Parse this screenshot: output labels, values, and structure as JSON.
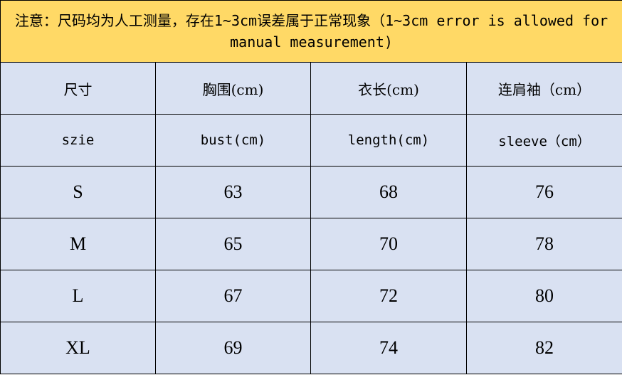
{
  "note": "注意：尺码均为人工测量，存在1~3cm误差属于正常现象（1~3cm error is allowed for manual measurement)",
  "colors": {
    "note_bg": "#FFD966",
    "cell_bg": "#D9E1F2"
  },
  "header_cn": [
    "尺寸",
    "胸围(cm)",
    "衣长(cm)",
    "连肩袖（cm）"
  ],
  "header_en": [
    "szie",
    "bust(cm)",
    "length(cm)",
    "sleeve（cm）"
  ],
  "rows": [
    [
      "S",
      "63",
      "68",
      "76"
    ],
    [
      "M",
      "65",
      "70",
      "78"
    ],
    [
      "L",
      "67",
      "72",
      "80"
    ],
    [
      "XL",
      "69",
      "74",
      "82"
    ]
  ]
}
